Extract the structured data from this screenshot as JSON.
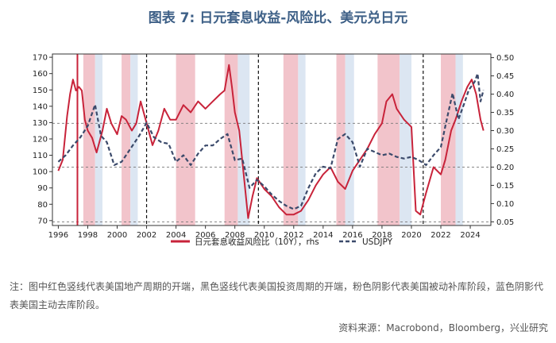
{
  "title": "图表 7:  日元套息收益-风险比、美元兑日元",
  "note": "注：图中红色竖线代表美国地产周期的开端，黑色竖线代表美国投资周期的开端，粉色阴影代表美国被动补库阶段，蓝色阴影代表美国主动去库阶段。",
  "source": "资料来源：Macrobond，Bloomberg，兴业研究",
  "colors": {
    "red": "#c8233a",
    "navy": "#3b4a6b",
    "pink": "#f2c4cb",
    "blue": "#dce6f2"
  },
  "chart_data": {
    "type": "line",
    "x_range": [
      1995.6,
      2025.4
    ],
    "x_ticks": [
      1996,
      1998,
      2000,
      2002,
      2004,
      2006,
      2008,
      2010,
      2012,
      2014,
      2016,
      2018,
      2020,
      2022,
      2024
    ],
    "y_left": {
      "range": [
        67,
        172
      ],
      "ticks": [
        70,
        80,
        90,
        100,
        110,
        120,
        130,
        140,
        150,
        160,
        170
      ]
    },
    "y_right": {
      "range": [
        0.04,
        0.51
      ],
      "ticks": [
        "0.05",
        "0.10",
        "0.15",
        "0.20",
        "0.25",
        "0.30",
        "0.35",
        "0.40",
        "0.45",
        "0.50"
      ]
    },
    "h_dashed_rhs": [
      0.05,
      0.2,
      0.32
    ],
    "pink_shades": [
      [
        1997.7,
        1998.5
      ],
      [
        2000.3,
        2000.9
      ],
      [
        2004.0,
        2005.3
      ],
      [
        2007.3,
        2008.2
      ],
      [
        2011.3,
        2012.3
      ],
      [
        2014.9,
        2015.5
      ],
      [
        2017.7,
        2019.2
      ],
      [
        2022.0,
        2023.0
      ]
    ],
    "blue_shades": [
      [
        1998.5,
        1999.0
      ],
      [
        2000.9,
        2001.4
      ],
      [
        2008.2,
        2009.0
      ],
      [
        2012.3,
        2012.8
      ],
      [
        2015.5,
        2016.1
      ],
      [
        2019.2,
        2020.0
      ],
      [
        2023.0,
        2023.5
      ]
    ],
    "red_vlines": [
      1997.3
    ],
    "black_vlines": [
      2002.0,
      2009.6,
      2020.8
    ],
    "series": [
      {
        "name": "日元套息收益风险比（10Y），rhs",
        "axis": "right",
        "points": [
          [
            1996.0,
            0.19
          ],
          [
            1996.3,
            0.22
          ],
          [
            1996.6,
            0.34
          ],
          [
            1996.8,
            0.4
          ],
          [
            1997.0,
            0.44
          ],
          [
            1997.2,
            0.41
          ],
          [
            1997.4,
            0.42
          ],
          [
            1997.6,
            0.41
          ],
          [
            1997.8,
            0.33
          ],
          [
            1998.0,
            0.3
          ],
          [
            1998.3,
            0.28
          ],
          [
            1998.6,
            0.24
          ],
          [
            1999.0,
            0.3
          ],
          [
            1999.3,
            0.36
          ],
          [
            1999.6,
            0.32
          ],
          [
            2000.0,
            0.29
          ],
          [
            2000.3,
            0.34
          ],
          [
            2000.6,
            0.33
          ],
          [
            2001.0,
            0.3
          ],
          [
            2001.3,
            0.32
          ],
          [
            2001.6,
            0.38
          ],
          [
            2002.0,
            0.32
          ],
          [
            2002.4,
            0.26
          ],
          [
            2002.8,
            0.3
          ],
          [
            2003.2,
            0.36
          ],
          [
            2003.6,
            0.33
          ],
          [
            2004.0,
            0.33
          ],
          [
            2004.5,
            0.37
          ],
          [
            2005.0,
            0.35
          ],
          [
            2005.5,
            0.38
          ],
          [
            2006.0,
            0.36
          ],
          [
            2006.5,
            0.38
          ],
          [
            2007.0,
            0.4
          ],
          [
            2007.3,
            0.41
          ],
          [
            2007.6,
            0.48
          ],
          [
            2007.8,
            0.42
          ],
          [
            2008.0,
            0.35
          ],
          [
            2008.3,
            0.3
          ],
          [
            2008.6,
            0.18
          ],
          [
            2008.9,
            0.06
          ],
          [
            2009.2,
            0.12
          ],
          [
            2009.5,
            0.17
          ],
          [
            2010.0,
            0.14
          ],
          [
            2010.5,
            0.12
          ],
          [
            2011.0,
            0.09
          ],
          [
            2011.5,
            0.07
          ],
          [
            2012.0,
            0.07
          ],
          [
            2012.5,
            0.08
          ],
          [
            2013.0,
            0.11
          ],
          [
            2013.5,
            0.15
          ],
          [
            2014.0,
            0.18
          ],
          [
            2014.5,
            0.2
          ],
          [
            2015.0,
            0.16
          ],
          [
            2015.5,
            0.14
          ],
          [
            2016.0,
            0.19
          ],
          [
            2016.5,
            0.22
          ],
          [
            2017.0,
            0.25
          ],
          [
            2017.5,
            0.29
          ],
          [
            2018.0,
            0.32
          ],
          [
            2018.3,
            0.38
          ],
          [
            2018.7,
            0.4
          ],
          [
            2019.0,
            0.36
          ],
          [
            2019.5,
            0.33
          ],
          [
            2020.0,
            0.31
          ],
          [
            2020.3,
            0.08
          ],
          [
            2020.6,
            0.07
          ],
          [
            2021.0,
            0.13
          ],
          [
            2021.5,
            0.2
          ],
          [
            2022.0,
            0.18
          ],
          [
            2022.3,
            0.22
          ],
          [
            2022.7,
            0.3
          ],
          [
            2023.0,
            0.33
          ],
          [
            2023.4,
            0.38
          ],
          [
            2023.8,
            0.42
          ],
          [
            2024.1,
            0.44
          ],
          [
            2024.4,
            0.4
          ],
          [
            2024.7,
            0.33
          ],
          [
            2024.9,
            0.3
          ]
        ]
      },
      {
        "name": "USDJPY",
        "axis": "left",
        "points": [
          [
            1996.0,
            106
          ],
          [
            1996.5,
            110
          ],
          [
            1997.0,
            116
          ],
          [
            1997.5,
            121
          ],
          [
            1998.0,
            128
          ],
          [
            1998.5,
            141
          ],
          [
            1998.9,
            122
          ],
          [
            1999.3,
            118
          ],
          [
            1999.8,
            104
          ],
          [
            2000.3,
            106
          ],
          [
            2000.9,
            114
          ],
          [
            2001.5,
            122
          ],
          [
            2002.0,
            130
          ],
          [
            2002.5,
            121
          ],
          [
            2003.0,
            118
          ],
          [
            2003.5,
            117
          ],
          [
            2004.0,
            106
          ],
          [
            2004.5,
            110
          ],
          [
            2005.0,
            104
          ],
          [
            2005.5,
            111
          ],
          [
            2006.0,
            116
          ],
          [
            2006.5,
            116
          ],
          [
            2007.0,
            120
          ],
          [
            2007.5,
            123
          ],
          [
            2008.0,
            107
          ],
          [
            2008.5,
            108
          ],
          [
            2009.0,
            90
          ],
          [
            2009.5,
            95
          ],
          [
            2010.0,
            91
          ],
          [
            2010.5,
            86
          ],
          [
            2011.0,
            82
          ],
          [
            2011.5,
            79
          ],
          [
            2012.0,
            77
          ],
          [
            2012.5,
            79
          ],
          [
            2013.0,
            90
          ],
          [
            2013.5,
            99
          ],
          [
            2014.0,
            103
          ],
          [
            2014.5,
            102
          ],
          [
            2015.0,
            120
          ],
          [
            2015.5,
            123
          ],
          [
            2016.0,
            118
          ],
          [
            2016.5,
            103
          ],
          [
            2017.0,
            114
          ],
          [
            2017.5,
            112
          ],
          [
            2018.0,
            110
          ],
          [
            2018.5,
            111
          ],
          [
            2019.0,
            109
          ],
          [
            2019.5,
            108
          ],
          [
            2020.0,
            109
          ],
          [
            2020.5,
            107
          ],
          [
            2021.0,
            104
          ],
          [
            2021.5,
            110
          ],
          [
            2022.0,
            115
          ],
          [
            2022.5,
            136
          ],
          [
            2022.8,
            148
          ],
          [
            2023.2,
            132
          ],
          [
            2023.6,
            142
          ],
          [
            2023.9,
            150
          ],
          [
            2024.3,
            155
          ],
          [
            2024.5,
            160
          ],
          [
            2024.7,
            143
          ],
          [
            2024.9,
            150
          ]
        ]
      }
    ]
  }
}
